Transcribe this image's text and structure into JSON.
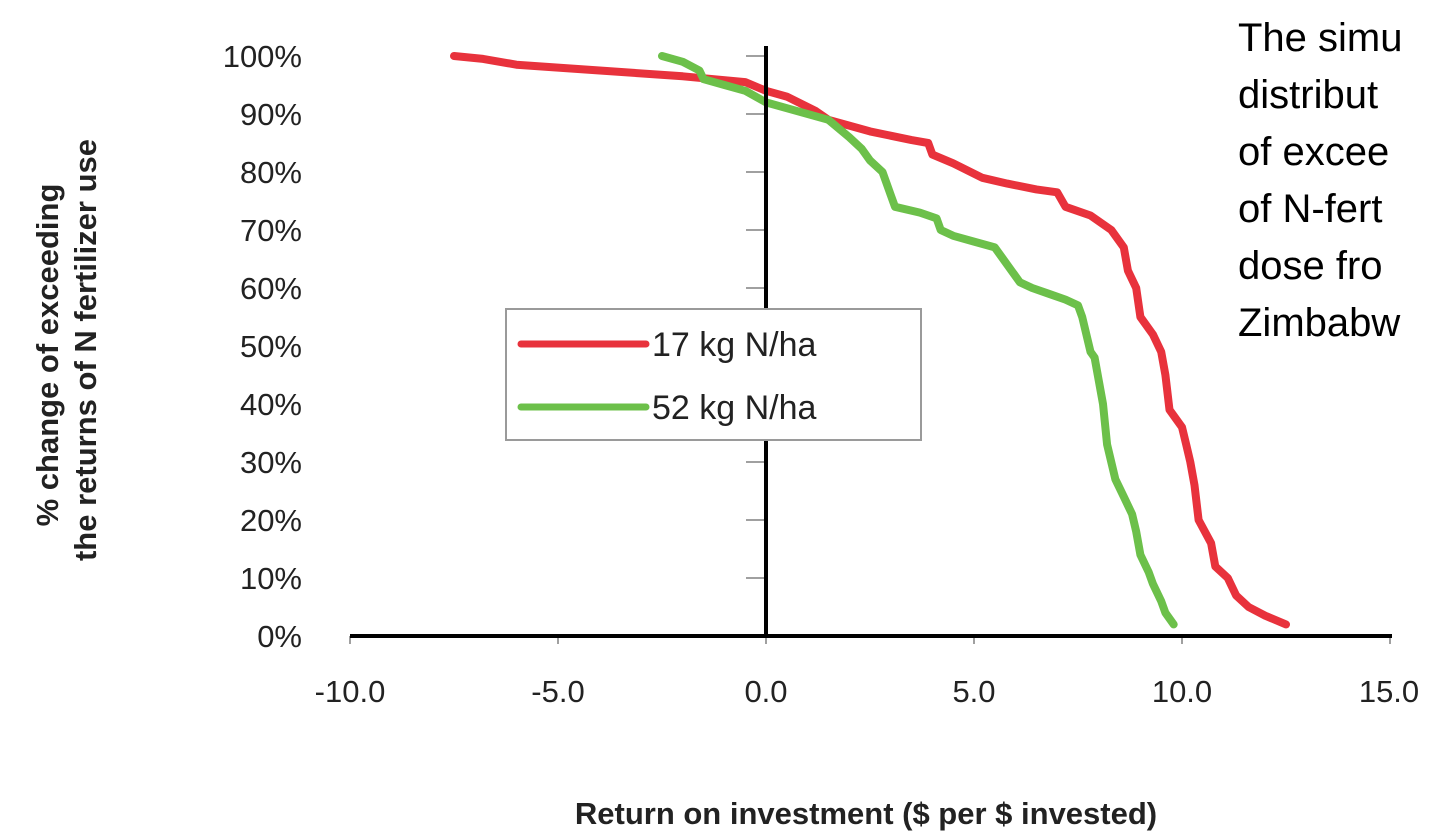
{
  "side_text": {
    "lines": [
      "The simu",
      "distribut",
      "of excee",
      "of N-fert",
      "dose fro",
      "Zimbabw"
    ]
  },
  "chart_data": {
    "type": "line",
    "title": "",
    "xlabel": "Return on investment ($ per $ invested)",
    "ylabel_lines": [
      "% change of exceeding",
      "the returns of N fertilizer use"
    ],
    "xlim": [
      -10,
      15
    ],
    "ylim": [
      0,
      100
    ],
    "x_ticks": [
      "-10.0",
      "-5.0",
      "0.0",
      "5.0",
      "10.0",
      "15.0"
    ],
    "y_ticks": [
      "0%",
      "10%",
      "20%",
      "30%",
      "40%",
      "50%",
      "60%",
      "70%",
      "80%",
      "90%",
      "100%"
    ],
    "grid": false,
    "legend_position": "center-left",
    "series": [
      {
        "name": "17 kg N/ha",
        "color": "#e8323c",
        "points": [
          [
            -7.5,
            100
          ],
          [
            -6.8,
            99.5
          ],
          [
            -6,
            98.5
          ],
          [
            -4,
            97.5
          ],
          [
            -2,
            96.5
          ],
          [
            -0.5,
            95.5
          ],
          [
            0,
            94
          ],
          [
            0.5,
            93
          ],
          [
            1.2,
            90.5
          ],
          [
            1.5,
            89
          ],
          [
            2.5,
            87
          ],
          [
            3.5,
            85.5
          ],
          [
            3.9,
            85
          ],
          [
            4.0,
            83
          ],
          [
            4.5,
            81.5
          ],
          [
            5.2,
            79
          ],
          [
            5.8,
            78
          ],
          [
            6.5,
            77
          ],
          [
            7.0,
            76.5
          ],
          [
            7.2,
            74
          ],
          [
            7.8,
            72.5
          ],
          [
            8.3,
            70
          ],
          [
            8.6,
            67
          ],
          [
            8.7,
            63
          ],
          [
            8.9,
            60
          ],
          [
            9.0,
            55
          ],
          [
            9.3,
            52
          ],
          [
            9.5,
            49
          ],
          [
            9.6,
            45
          ],
          [
            9.7,
            39
          ],
          [
            10.0,
            36
          ],
          [
            10.1,
            33
          ],
          [
            10.2,
            30
          ],
          [
            10.3,
            26
          ],
          [
            10.4,
            20
          ],
          [
            10.7,
            16
          ],
          [
            10.8,
            12
          ],
          [
            11.1,
            10
          ],
          [
            11.3,
            7
          ],
          [
            11.6,
            5
          ],
          [
            12.0,
            3.5
          ],
          [
            12.5,
            2
          ]
        ]
      },
      {
        "name": "52 kg N/ha",
        "color": "#6cc04a",
        "points": [
          [
            -2.5,
            100
          ],
          [
            -2.0,
            99
          ],
          [
            -1.6,
            97.5
          ],
          [
            -1.5,
            96
          ],
          [
            -1.0,
            95
          ],
          [
            -0.5,
            94
          ],
          [
            0,
            92
          ],
          [
            1.5,
            89
          ],
          [
            2.0,
            86
          ],
          [
            2.3,
            84
          ],
          [
            2.5,
            82
          ],
          [
            2.8,
            80
          ],
          [
            3.0,
            76
          ],
          [
            3.1,
            74
          ],
          [
            3.7,
            73
          ],
          [
            4.1,
            72
          ],
          [
            4.2,
            70
          ],
          [
            4.5,
            69
          ],
          [
            5.0,
            68
          ],
          [
            5.5,
            67
          ],
          [
            5.8,
            64
          ],
          [
            6.1,
            61
          ],
          [
            6.4,
            60
          ],
          [
            6.8,
            59
          ],
          [
            7.2,
            58
          ],
          [
            7.5,
            57
          ],
          [
            7.6,
            55
          ],
          [
            7.8,
            49
          ],
          [
            7.9,
            48
          ],
          [
            8.0,
            44
          ],
          [
            8.1,
            40
          ],
          [
            8.2,
            33
          ],
          [
            8.4,
            27
          ],
          [
            8.6,
            24
          ],
          [
            8.8,
            21
          ],
          [
            8.9,
            18
          ],
          [
            9.0,
            14
          ],
          [
            9.2,
            11
          ],
          [
            9.3,
            9
          ],
          [
            9.5,
            6
          ],
          [
            9.6,
            4
          ],
          [
            9.8,
            2
          ]
        ]
      }
    ]
  }
}
